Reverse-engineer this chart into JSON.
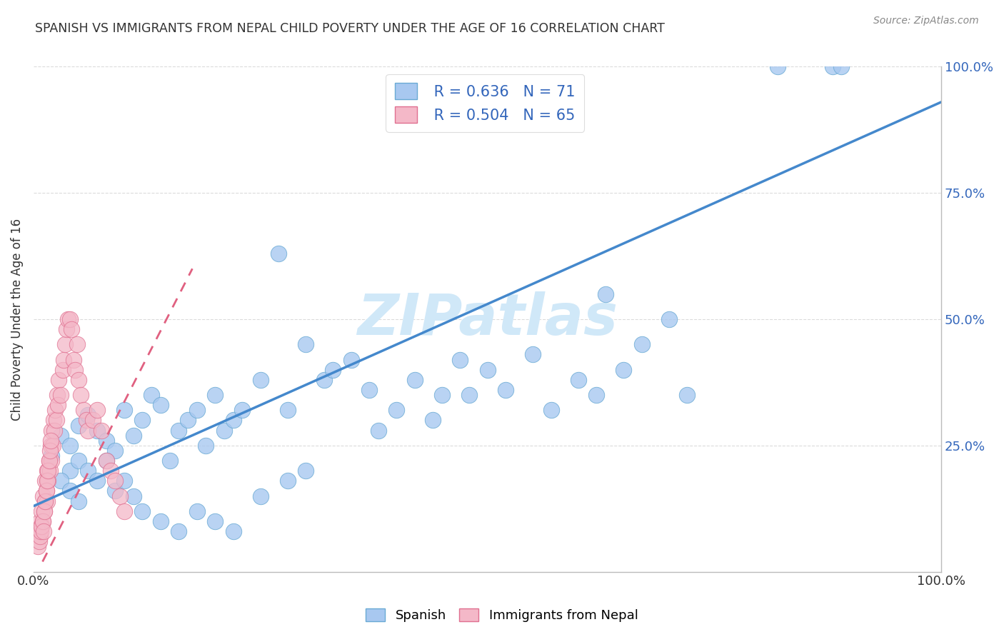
{
  "title": "SPANISH VS IMMIGRANTS FROM NEPAL CHILD POVERTY UNDER THE AGE OF 16 CORRELATION CHART",
  "source": "Source: ZipAtlas.com",
  "ylabel": "Child Poverty Under the Age of 16",
  "xlim": [
    0,
    1
  ],
  "ylim": [
    0,
    1
  ],
  "ytick_labels": [
    "25.0%",
    "50.0%",
    "75.0%",
    "100.0%"
  ],
  "ytick_positions": [
    0.25,
    0.5,
    0.75,
    1.0
  ],
  "legend_r1": "R = 0.636",
  "legend_n1": "N = 71",
  "legend_r2": "R = 0.504",
  "legend_n2": "N = 65",
  "blue_scatter_color": "#a8c8f0",
  "blue_edge_color": "#6aaad4",
  "pink_scatter_color": "#f4b8c8",
  "pink_edge_color": "#e07090",
  "blue_line_color": "#4488cc",
  "pink_line_color": "#e06080",
  "r_n_color": "#3366bb",
  "watermark": "ZIPatlas",
  "watermark_color": "#d0e8f8",
  "title_color": "#333333",
  "grid_color": "#cccccc",
  "blue_trend_x0": 0.0,
  "blue_trend_y0": 0.13,
  "blue_trend_x1": 1.0,
  "blue_trend_y1": 0.93,
  "pink_trend_x0": 0.01,
  "pink_trend_y0": 0.02,
  "pink_trend_x1": 0.175,
  "pink_trend_y1": 0.6,
  "spanish_x": [
    0.02,
    0.03,
    0.04,
    0.04,
    0.05,
    0.05,
    0.06,
    0.07,
    0.08,
    0.09,
    0.1,
    0.11,
    0.12,
    0.13,
    0.14,
    0.15,
    0.16,
    0.17,
    0.18,
    0.19,
    0.2,
    0.21,
    0.22,
    0.23,
    0.25,
    0.27,
    0.28,
    0.3,
    0.32,
    0.33,
    0.35,
    0.37,
    0.38,
    0.4,
    0.42,
    0.44,
    0.45,
    0.47,
    0.48,
    0.5,
    0.52,
    0.55,
    0.57,
    0.6,
    0.62,
    0.63,
    0.65,
    0.67,
    0.7,
    0.72,
    0.03,
    0.04,
    0.05,
    0.06,
    0.07,
    0.08,
    0.09,
    0.1,
    0.11,
    0.12,
    0.14,
    0.16,
    0.18,
    0.2,
    0.22,
    0.25,
    0.28,
    0.3,
    0.82,
    0.88,
    0.89
  ],
  "spanish_y": [
    0.23,
    0.27,
    0.25,
    0.2,
    0.29,
    0.22,
    0.31,
    0.28,
    0.26,
    0.24,
    0.32,
    0.27,
    0.3,
    0.35,
    0.33,
    0.22,
    0.28,
    0.3,
    0.32,
    0.25,
    0.35,
    0.28,
    0.3,
    0.32,
    0.38,
    0.63,
    0.32,
    0.45,
    0.38,
    0.4,
    0.42,
    0.36,
    0.28,
    0.32,
    0.38,
    0.3,
    0.35,
    0.42,
    0.35,
    0.4,
    0.36,
    0.43,
    0.32,
    0.38,
    0.35,
    0.55,
    0.4,
    0.45,
    0.5,
    0.35,
    0.18,
    0.16,
    0.14,
    0.2,
    0.18,
    0.22,
    0.16,
    0.18,
    0.15,
    0.12,
    0.1,
    0.08,
    0.12,
    0.1,
    0.08,
    0.15,
    0.18,
    0.2,
    1.0,
    1.0,
    1.0
  ],
  "nepal_x": [
    0.005,
    0.007,
    0.008,
    0.009,
    0.01,
    0.01,
    0.012,
    0.013,
    0.013,
    0.014,
    0.015,
    0.015,
    0.016,
    0.017,
    0.018,
    0.019,
    0.02,
    0.02,
    0.021,
    0.022,
    0.023,
    0.024,
    0.025,
    0.026,
    0.027,
    0.028,
    0.03,
    0.032,
    0.033,
    0.035,
    0.036,
    0.038,
    0.04,
    0.042,
    0.044,
    0.046,
    0.048,
    0.05,
    0.052,
    0.055,
    0.058,
    0.06,
    0.065,
    0.07,
    0.075,
    0.08,
    0.085,
    0.09,
    0.095,
    0.1,
    0.005,
    0.006,
    0.007,
    0.008,
    0.009,
    0.01,
    0.011,
    0.012,
    0.013,
    0.014,
    0.015,
    0.016,
    0.017,
    0.018,
    0.019
  ],
  "nepal_y": [
    0.08,
    0.1,
    0.09,
    0.12,
    0.1,
    0.15,
    0.12,
    0.14,
    0.18,
    0.16,
    0.14,
    0.2,
    0.18,
    0.22,
    0.2,
    0.25,
    0.22,
    0.28,
    0.25,
    0.3,
    0.28,
    0.32,
    0.3,
    0.35,
    0.33,
    0.38,
    0.35,
    0.4,
    0.42,
    0.45,
    0.48,
    0.5,
    0.5,
    0.48,
    0.42,
    0.4,
    0.45,
    0.38,
    0.35,
    0.32,
    0.3,
    0.28,
    0.3,
    0.32,
    0.28,
    0.22,
    0.2,
    0.18,
    0.15,
    0.12,
    0.05,
    0.06,
    0.07,
    0.08,
    0.09,
    0.1,
    0.08,
    0.12,
    0.14,
    0.16,
    0.18,
    0.2,
    0.22,
    0.24,
    0.26
  ]
}
